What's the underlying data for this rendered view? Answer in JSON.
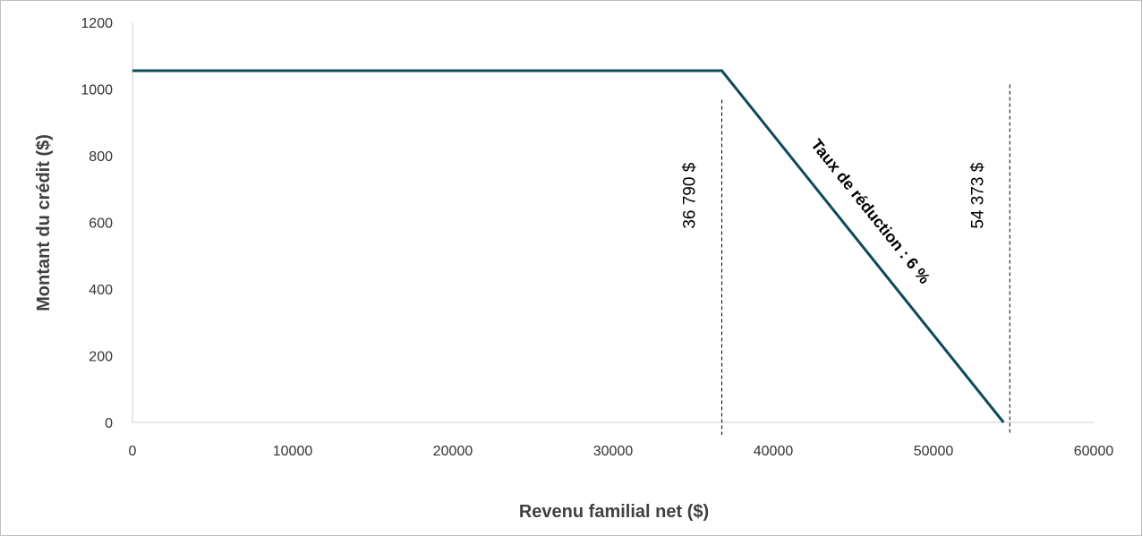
{
  "chart_data": {
    "type": "line",
    "title": "",
    "xlabel": "Revenu familial net ($)",
    "ylabel": "Montant du crédit ($)",
    "xlim": [
      0,
      60000
    ],
    "ylim": [
      0,
      1200
    ],
    "x_ticks": [
      0,
      10000,
      20000,
      30000,
      40000,
      50000,
      60000
    ],
    "y_ticks": [
      0,
      200,
      400,
      600,
      800,
      1000,
      1200
    ],
    "x_tick_labels": [
      "0",
      "10000",
      "20000",
      "30000",
      "40000",
      "50000",
      "60000"
    ],
    "y_tick_labels": [
      "0",
      "200",
      "400",
      "600",
      "800",
      "1000",
      "1200"
    ],
    "grid": false,
    "legend": "none",
    "series": [
      {
        "x": [
          0,
          36790,
          54373
        ],
        "y": [
          1055,
          1055,
          0
        ],
        "color": "#0d4a57"
      }
    ],
    "reference_lines": [
      {
        "x": 36790,
        "label": "36 790 $"
      },
      {
        "x": 54373,
        "label": "54 373 $"
      }
    ],
    "annotations": [
      {
        "text": "Taux de réduction : 6 %"
      }
    ]
  }
}
